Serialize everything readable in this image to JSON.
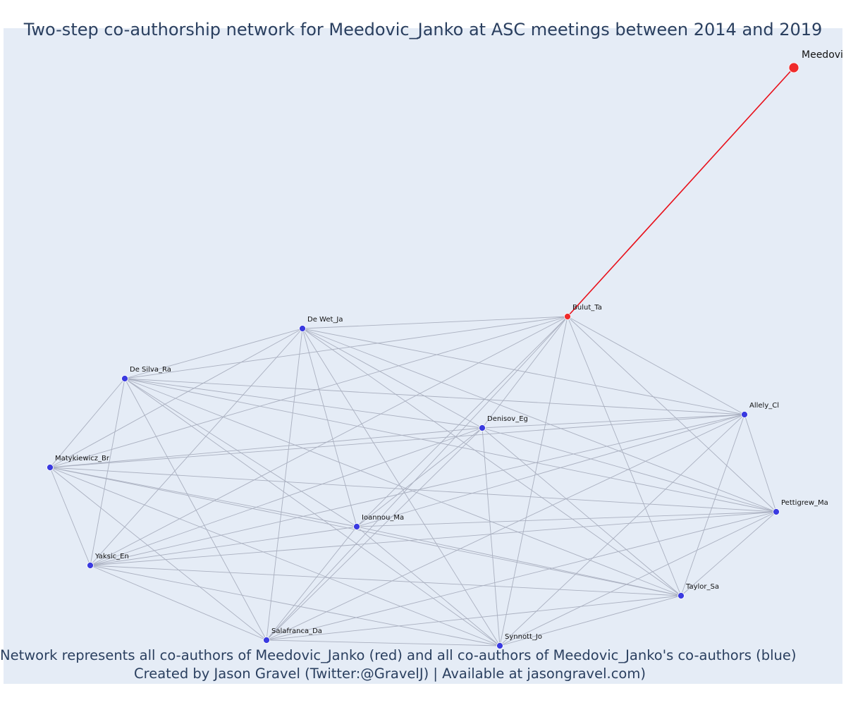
{
  "title": "Two-step co-authorship network for Meedovic_Janko at ASC meetings between 2014 and 2019",
  "caption_line1": "Network represents all co-authors of Meedovic_Janko (red) and all co-authors of Meedovic_Janko's co-authors (blue)",
  "caption_line2": "Created by Jason Gravel (Twitter:@GravelJ) | Available at jasongravel.com)",
  "colors": {
    "background": "#e5ecf6",
    "edge": "#aab0c0",
    "focal_edge": "#e8101a",
    "red_node": "#ef2b2b",
    "blue_node": "#3a3ae0",
    "text": "#2a3f5f"
  },
  "nodes": [
    {
      "id": "Meedovic_Janko",
      "label": "Meedovi",
      "group": "focal"
    },
    {
      "id": "Bulut_Ta",
      "label": "Bulut_Ta",
      "group": "coauthor"
    },
    {
      "id": "De Wet_Ja",
      "label": "De Wet_Ja",
      "group": "second"
    },
    {
      "id": "De Silva_Ra",
      "label": "De Silva_Ra",
      "group": "second"
    },
    {
      "id": "Allely_Cl",
      "label": "Allely_Cl",
      "group": "second"
    },
    {
      "id": "Denisov_Eg",
      "label": "Denisov_Eg",
      "group": "second"
    },
    {
      "id": "Matykiewicz_Br",
      "label": "Matykiewicz_Br",
      "group": "second"
    },
    {
      "id": "Pettigrew_Ma",
      "label": "Pettigrew_Ma",
      "group": "second"
    },
    {
      "id": "Ioannou_Ma",
      "label": "Ioannou_Ma",
      "group": "second"
    },
    {
      "id": "Yaksic_En",
      "label": "Yaksic_En",
      "group": "second"
    },
    {
      "id": "Taylor_Sa",
      "label": "Taylor_Sa",
      "group": "second"
    },
    {
      "id": "Salafranca_Da",
      "label": "Salafranca_Da",
      "group": "second"
    },
    {
      "id": "Synnott_Jo",
      "label": "Synnott_Jo",
      "group": "second"
    }
  ],
  "focal_edges": [
    [
      "Meedovic_Janko",
      "Bulut_Ta"
    ]
  ],
  "edges": "all-pairs among Bulut_Ta and second-degree co-authors"
}
